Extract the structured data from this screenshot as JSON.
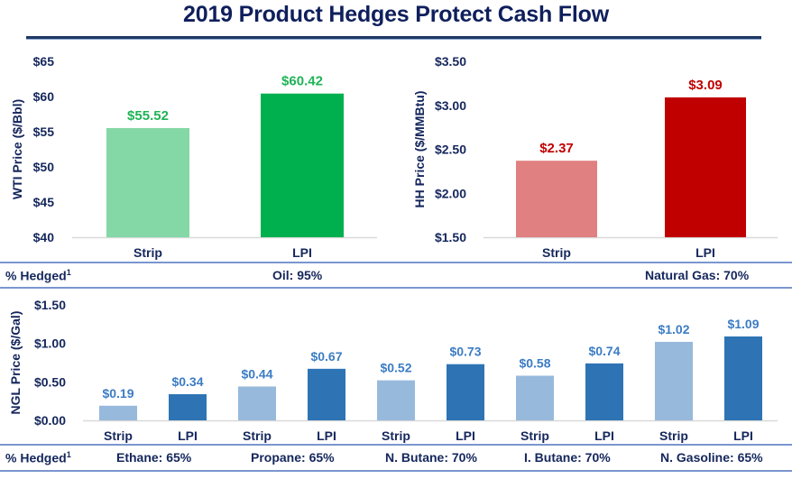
{
  "title": "2019 Product Hedges Protect Cash Flow",
  "hedged_label": "% Hedged",
  "hedged_sup": "1",
  "oil_hedged": "Oil: 95%",
  "gas_hedged": "Natural Gas: 70%",
  "ngl_hedged": [
    "Ethane: 65%",
    "Propane: 65%",
    "N. Butane: 70%",
    "I. Butane: 70%",
    "N. Gasoline: 65%"
  ],
  "colors": {
    "title": "#0f1f5c",
    "axis_text": "#14265c",
    "oil_strip": "#84d8a6",
    "oil_lpi": "#00b04f",
    "oil_label": "#1fb356",
    "gas_strip": "#e08080",
    "gas_lpi": "#c00000",
    "gas_label": "#c00000",
    "ngl_strip": "#97b9dc",
    "ngl_lpi": "#2e74b5",
    "ngl_label": "#3b7cc4",
    "divider": "#7b96cf"
  },
  "chart_data": [
    {
      "type": "bar",
      "title": "",
      "ylabel": "WTI Price ($/Bbl)",
      "xlabel": "",
      "categories": [
        "Strip",
        "LPI"
      ],
      "values": [
        55.52,
        60.42
      ],
      "value_labels": [
        "$55.52",
        "$60.42"
      ],
      "ylim": [
        40,
        65
      ],
      "yticks": [
        40,
        45,
        50,
        55,
        60,
        65
      ],
      "ytick_labels": [
        "$40",
        "$45",
        "$50",
        "$55",
        "$60",
        "$65"
      ],
      "grid": false
    },
    {
      "type": "bar",
      "title": "",
      "ylabel": "HH Price ($/MMBtu)",
      "xlabel": "",
      "categories": [
        "Strip",
        "LPI"
      ],
      "values": [
        2.37,
        3.09
      ],
      "value_labels": [
        "$2.37",
        "$3.09"
      ],
      "ylim": [
        1.5,
        3.5
      ],
      "yticks": [
        1.5,
        2.0,
        2.5,
        3.0,
        3.5
      ],
      "ytick_labels": [
        "$1.50",
        "$2.00",
        "$2.50",
        "$3.00",
        "$3.50"
      ],
      "grid": false
    },
    {
      "type": "bar",
      "title": "",
      "ylabel": "NGL Price ($/Gal)",
      "xlabel": "",
      "categories": [
        "Strip",
        "LPI",
        "Strip",
        "LPI",
        "Strip",
        "LPI",
        "Strip",
        "LPI",
        "Strip",
        "LPI"
      ],
      "groups": [
        "Ethane",
        "Propane",
        "N. Butane",
        "I. Butane",
        "N. Gasoline"
      ],
      "series": [
        {
          "name": "Strip",
          "values": [
            0.19,
            0.44,
            0.52,
            0.58,
            1.02
          ]
        },
        {
          "name": "LPI",
          "values": [
            0.34,
            0.67,
            0.73,
            0.74,
            1.09
          ]
        }
      ],
      "values": [
        0.19,
        0.34,
        0.44,
        0.67,
        0.52,
        0.73,
        0.58,
        0.74,
        1.02,
        1.09
      ],
      "value_labels": [
        "$0.19",
        "$0.34",
        "$0.44",
        "$0.67",
        "$0.52",
        "$0.73",
        "$0.58",
        "$0.74",
        "$1.02",
        "$1.09"
      ],
      "ylim": [
        0,
        1.5
      ],
      "yticks": [
        0,
        0.5,
        1.0,
        1.5
      ],
      "ytick_labels": [
        "$0.00",
        "$0.50",
        "$1.00",
        "$1.50"
      ],
      "grid": false
    }
  ]
}
